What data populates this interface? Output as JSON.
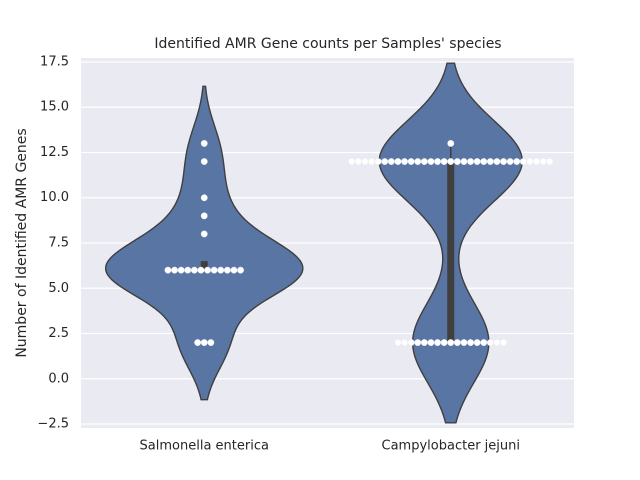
{
  "chart_data": {
    "type": "violin",
    "title": "Identified AMR Gene counts per Samples' species",
    "y_label": "Number of Identified AMR Genes",
    "categories": [
      "Salmonella enterica",
      "Campylobacter jejuni"
    ],
    "values": [
      [
        2,
        2,
        2,
        6,
        6,
        6,
        6,
        6,
        6,
        6,
        6,
        6,
        6,
        6,
        6,
        8,
        9,
        10,
        12,
        13
      ],
      [
        2,
        2,
        2,
        2,
        2,
        2,
        2,
        2,
        2,
        2,
        2,
        2,
        2,
        2,
        2,
        2,
        2,
        12,
        12,
        12,
        12,
        12,
        12,
        12,
        12,
        12,
        12,
        12,
        12,
        12,
        12,
        12,
        12,
        12,
        12,
        12,
        12,
        12,
        12,
        12,
        12,
        12,
        12,
        12,
        12,
        12,
        12,
        12,
        13
      ]
    ],
    "color": "#5975a4",
    "point_color": "#ffffff",
    "ylim": [
      -2.72,
      17.72
    ],
    "yticks": [
      {
        "value": -2.5,
        "label": "−2.5"
      },
      {
        "value": 0,
        "label": "0.0"
      },
      {
        "value": 2.5,
        "label": "2.5"
      },
      {
        "value": 5,
        "label": "5.0"
      },
      {
        "value": 7.5,
        "label": "7.5"
      },
      {
        "value": 10,
        "label": "10.0"
      },
      {
        "value": 12.5,
        "label": "12.5"
      },
      {
        "value": 15,
        "label": "15.0"
      },
      {
        "value": 17.5,
        "label": "17.5"
      }
    ],
    "grid": true
  }
}
